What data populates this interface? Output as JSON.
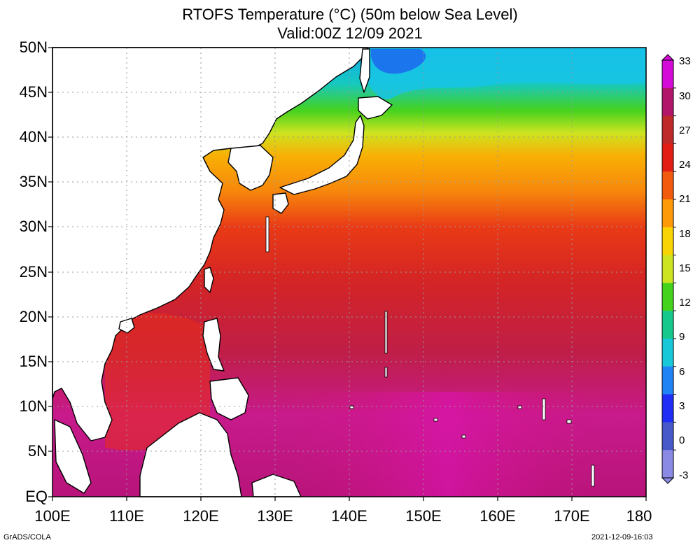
{
  "title": {
    "line1": "RTOFS Temperature (°C) (50m below Sea Level)",
    "line2": "Valid:00Z 12/09 2021"
  },
  "map": {
    "region": "Western/Central North Pacific",
    "variable": "Sea temperature at 50m depth",
    "units": "°C",
    "lat_range": [
      0,
      50
    ],
    "lon_range": [
      100,
      180
    ],
    "lat_labels": [
      "50N",
      "45N",
      "40N",
      "35N",
      "30N",
      "25N",
      "20N",
      "15N",
      "10N",
      "5N",
      "EQ"
    ],
    "lon_labels": [
      "100E",
      "110E",
      "120E",
      "130E",
      "140E",
      "150E",
      "160E",
      "170E",
      "180"
    ],
    "grid": true
  },
  "colorbar": {
    "labels": [
      "33",
      "30",
      "27",
      "24",
      "21",
      "18",
      "15",
      "12",
      "9",
      "6",
      "3",
      "0",
      "-3"
    ],
    "colors": [
      "#d40ad9",
      "#b1166a",
      "#be2a2a",
      "#e21d16",
      "#f25b0e",
      "#fc9a08",
      "#f8d405",
      "#cde420",
      "#45d21d",
      "#16c88c",
      "#16c8d8",
      "#1f82f5",
      "#1f2df5",
      "#4758c8",
      "#8a8ae4"
    ]
  },
  "footer": {
    "left": "GrADS/COLA",
    "right": "2021-12-09-16:03"
  }
}
